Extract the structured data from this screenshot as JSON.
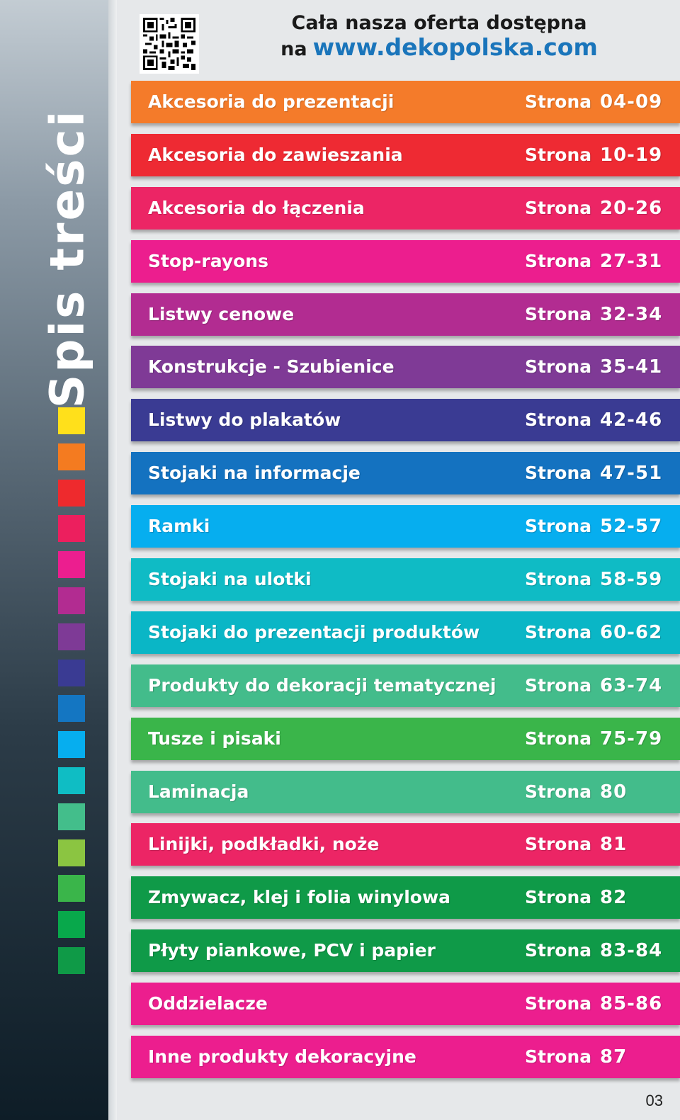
{
  "sidebar": {
    "title": "Spis treści",
    "swatches": [
      "#ffe01b",
      "#f47b20",
      "#ee2a2d",
      "#ec1f5e",
      "#ec1e8f",
      "#b22c91",
      "#7e3a96",
      "#3a3b93",
      "#1476c2",
      "#06aeef",
      "#0fbdc4",
      "#43be8b",
      "#8bc541",
      "#3ab54a",
      "#08a84b",
      "#0f9a47"
    ]
  },
  "header": {
    "line1": "Cała nasza oferta dostępna",
    "prefix": "na",
    "url": "www.dekopolska.com",
    "qr_icon": "qr-code-icon"
  },
  "toc": [
    {
      "label": "Akcesoria do prezentacji",
      "word": "Strona",
      "pages": "04-09",
      "color": "#f47b2a"
    },
    {
      "label": "Akcesoria do zawieszania",
      "word": "Strona",
      "pages": "10-19",
      "color": "#ee2a33"
    },
    {
      "label": "Akcesoria do łączenia",
      "word": "Strona",
      "pages": "20-26",
      "color": "#ec2565"
    },
    {
      "label": "Stop-rayons",
      "word": "Strona",
      "pages": "27-31",
      "color": "#ec1e8e"
    },
    {
      "label": "Listwy cenowe",
      "word": "Strona",
      "pages": "32-34",
      "color": "#b22c91"
    },
    {
      "label": "Konstrukcje - Szubienice",
      "word": "Strona",
      "pages": "35-41",
      "color": "#7f3a96"
    },
    {
      "label": "Listwy do plakatów",
      "word": "Strona",
      "pages": "42-46",
      "color": "#3a3b93"
    },
    {
      "label": "Stojaki na informacje",
      "word": "Strona",
      "pages": "47-51",
      "color": "#1472c0"
    },
    {
      "label": "Ramki",
      "word": "Strona",
      "pages": "52-57",
      "color": "#06aeef"
    },
    {
      "label": "Stojaki na ulotki",
      "word": "Strona",
      "pages": "58-59",
      "color": "#0fbbc5"
    },
    {
      "label": "Stojaki do prezentacji produktów",
      "word": "Strona",
      "pages": "60-62",
      "color": "#0ab6c6"
    },
    {
      "label": "Produkty do dekoracji tematycznej",
      "word": "Strona",
      "pages": "63-74",
      "color": "#43bc8b"
    },
    {
      "label": "Tusze i pisaki",
      "word": "Strona",
      "pages": "75-79",
      "color": "#3ab54a"
    },
    {
      "label": "Laminacja",
      "word": "Strona",
      "pages": "80",
      "color": "#43bc8b"
    },
    {
      "label": "Linijki, podkładki, noże",
      "word": "Strona",
      "pages": "81",
      "color": "#ec2565"
    },
    {
      "label": "Zmywacz, klej i folia winylowa",
      "word": "Strona",
      "pages": "82",
      "color": "#0f9a48"
    },
    {
      "label": "Płyty piankowe, PCV i papier",
      "word": "Strona",
      "pages": "83-84",
      "color": "#0f9a48"
    },
    {
      "label": "Oddzielacze",
      "word": "Strona",
      "pages": "85-86",
      "color": "#ec1e8e"
    },
    {
      "label": "Inne produkty dekoracyjne",
      "word": "Strona",
      "pages": "87",
      "color": "#ec1e8e"
    }
  ],
  "page_number": "03"
}
